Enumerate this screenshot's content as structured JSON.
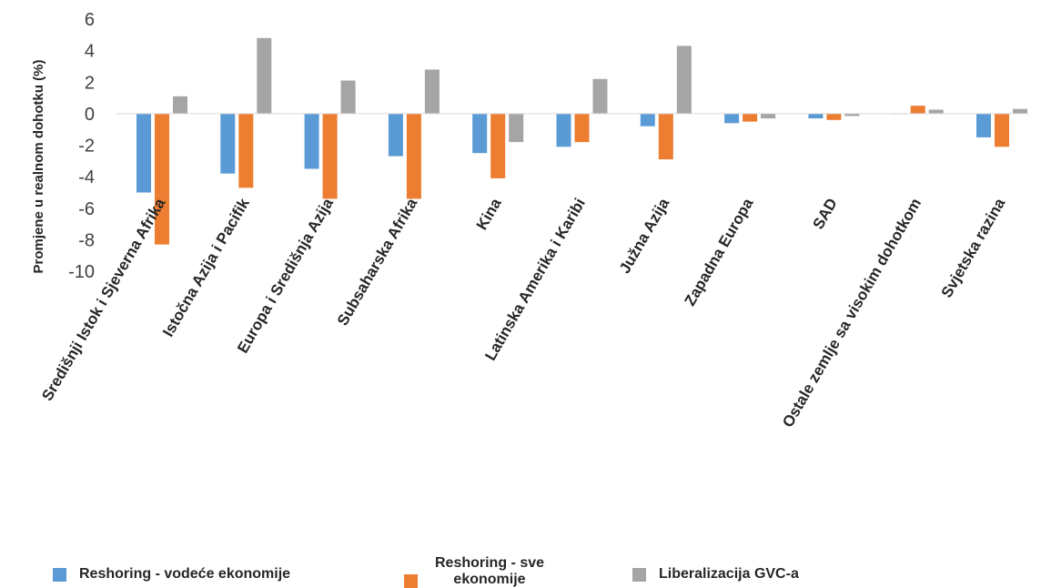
{
  "chart_data": {
    "type": "bar",
    "ylabel": "Promjene u realnom dohotku (%)",
    "ylim": [
      -10,
      6
    ],
    "yticks": [
      6,
      4,
      2,
      0,
      -2,
      -4,
      -6,
      -8,
      -10
    ],
    "grid": false,
    "legend_position": "bottom",
    "categories": [
      "Središnji Istok i Sjeverna Afrika",
      "Istočna Azija i Pacifik",
      "Europa i Središnja Azija",
      "Subsaharska Afrika",
      "Kina",
      "Latinska Amerika i Karibi",
      "Južna Azija",
      "Zapadna Europa",
      "SAD",
      "Ostale zemlje sa visokim dohotkom",
      "Svjetska razina"
    ],
    "series": [
      {
        "name": "Reshoring - vodeće ekonomije",
        "color": "#5B9BD5",
        "values": [
          -5.0,
          -3.8,
          -3.5,
          -2.7,
          -2.5,
          -2.1,
          -0.8,
          -0.6,
          -0.3,
          0.0,
          -1.5
        ]
      },
      {
        "name": "Reshoring - sve ekonomije",
        "color": "#ED7D31",
        "values": [
          -8.3,
          -4.7,
          -5.4,
          -5.4,
          -4.1,
          -1.8,
          -2.9,
          -0.5,
          -0.4,
          0.5,
          -2.1
        ]
      },
      {
        "name": "Liberalizacija GVC-a",
        "color": "#A5A5A5",
        "values": [
          1.1,
          4.8,
          2.1,
          2.8,
          -1.8,
          2.2,
          4.3,
          -0.3,
          -0.15,
          0.25,
          0.3
        ]
      }
    ]
  },
  "legend": [
    {
      "label": "Reshoring - vodeće ekonomije",
      "color": "#5B9BD5"
    },
    {
      "label": "Reshoring - sve ekonomije",
      "color": "#ED7D31"
    },
    {
      "label": "Liberalizacija GVC-a",
      "color": "#A5A5A5"
    }
  ]
}
